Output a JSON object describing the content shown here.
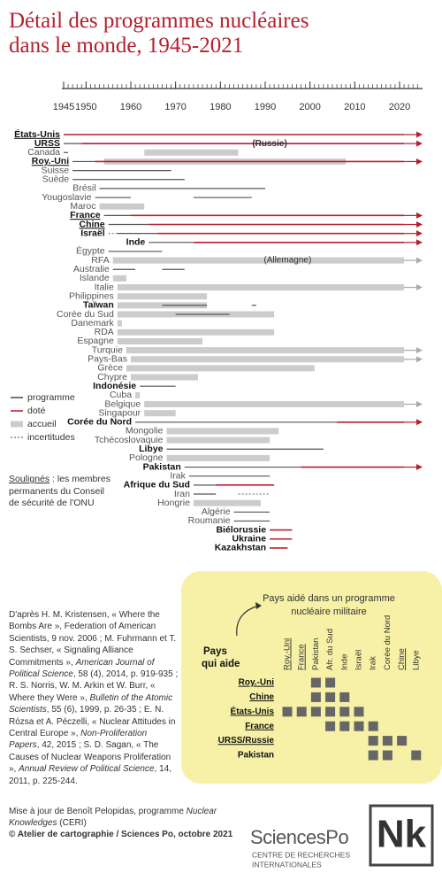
{
  "chart_data": {
    "type": "timeline",
    "title": "Détail des programmes nucléaires dans le monde, 1945-2021",
    "xlim": [
      1945,
      2020
    ],
    "xticks": [
      1945,
      1950,
      1960,
      1970,
      1980,
      1990,
      2000,
      2010,
      2020
    ],
    "kinds": {
      "p": "#555555",
      "d": "#b5202e",
      "a": "#cccccc",
      "i": "#888888"
    },
    "rows": [
      {
        "name": "États-Unis",
        "bold": true,
        "underline": true,
        "segments": [
          {
            "k": "d",
            "from": 1945,
            "to": 2021,
            "arrow": true
          }
        ]
      },
      {
        "name": "URSS",
        "bold": true,
        "underline": true,
        "segments": [
          {
            "k": "p",
            "from": 1945,
            "to": 1949
          },
          {
            "k": "d",
            "from": 1949,
            "to": 2021,
            "arrow": true
          }
        ],
        "note": "(Russie)",
        "note_at": 1991
      },
      {
        "name": "Canada",
        "segments": [
          {
            "k": "p",
            "from": 1945,
            "to": 1946
          },
          {
            "k": "a",
            "from": 1963,
            "to": 1984
          }
        ]
      },
      {
        "name": "Roy.-Uni",
        "bold": true,
        "underline": true,
        "segments": [
          {
            "k": "p",
            "from": 1947,
            "to": 1952
          },
          {
            "k": "a",
            "from": 1954,
            "to": 2008
          },
          {
            "k": "d",
            "from": 1952,
            "to": 2021,
            "arrow": true
          }
        ]
      },
      {
        "name": "Suisse",
        "segments": [
          {
            "k": "p",
            "from": 1947,
            "to": 1969
          }
        ]
      },
      {
        "name": "Suède",
        "segments": [
          {
            "k": "p",
            "from": 1947,
            "to": 1972
          }
        ]
      },
      {
        "name": "Brésil",
        "segments": [
          {
            "k": "p",
            "from": 1953,
            "to": 1990
          }
        ]
      },
      {
        "name": "Yougoslavie",
        "segments": [
          {
            "k": "p",
            "from": 1952,
            "to": 1960
          },
          {
            "k": "p",
            "from": 1974,
            "to": 1987
          }
        ]
      },
      {
        "name": "Maroc",
        "segments": [
          {
            "k": "a",
            "from": 1953,
            "to": 1963
          }
        ]
      },
      {
        "name": "France",
        "bold": true,
        "underline": true,
        "segments": [
          {
            "k": "p",
            "from": 1954,
            "to": 1960
          },
          {
            "k": "d",
            "from": 1960,
            "to": 2021,
            "arrow": true
          }
        ]
      },
      {
        "name": "Chine",
        "bold": true,
        "underline": true,
        "segments": [
          {
            "k": "p",
            "from": 1955,
            "to": 1964
          },
          {
            "k": "d",
            "from": 1964,
            "to": 2021,
            "arrow": true
          }
        ]
      },
      {
        "name": "Israël",
        "bold": true,
        "segments": [
          {
            "k": "i",
            "from": 1955,
            "to": 1957
          },
          {
            "k": "p",
            "from": 1957,
            "to": 1966
          },
          {
            "k": "d",
            "from": 1966,
            "to": 2021,
            "arrow": true
          }
        ]
      },
      {
        "name": "Inde",
        "bold": true,
        "segments": [
          {
            "k": "p",
            "from": 1964,
            "to": 1974
          },
          {
            "k": "d",
            "from": 1974,
            "to": 2021,
            "arrow": true
          }
        ]
      },
      {
        "name": "Égypte",
        "segments": [
          {
            "k": "p",
            "from": 1955,
            "to": 1967
          }
        ]
      },
      {
        "name": "RFA",
        "segments": [
          {
            "k": "a",
            "from": 1956,
            "to": 2021,
            "arrow": true
          }
        ],
        "note": "(Allemagne)",
        "note_at": 1995
      },
      {
        "name": "Australie",
        "segments": [
          {
            "k": "p",
            "from": 1956,
            "to": 1961
          },
          {
            "k": "p",
            "from": 1967,
            "to": 1972
          }
        ]
      },
      {
        "name": "Islande",
        "segments": [
          {
            "k": "a",
            "from": 1956,
            "to": 1959
          }
        ]
      },
      {
        "name": "Italie",
        "segments": [
          {
            "k": "a",
            "from": 1957,
            "to": 2021,
            "arrow": true
          }
        ]
      },
      {
        "name": "Philippines",
        "segments": [
          {
            "k": "a",
            "from": 1957,
            "to": 1977
          }
        ]
      },
      {
        "name": "Taïwan",
        "bold": true,
        "segments": [
          {
            "k": "a",
            "from": 1957,
            "to": 1977
          },
          {
            "k": "p",
            "from": 1967,
            "to": 1977
          },
          {
            "k": "p",
            "from": 1987,
            "to": 1988
          }
        ]
      },
      {
        "name": "Corée du Sud",
        "segments": [
          {
            "k": "a",
            "from": 1957,
            "to": 1992
          },
          {
            "k": "p",
            "from": 1970,
            "to": 1982
          }
        ]
      },
      {
        "name": "Danemark",
        "segments": [
          {
            "k": "a",
            "from": 1957,
            "to": 1958
          }
        ]
      },
      {
        "name": "RDA",
        "segments": [
          {
            "k": "a",
            "from": 1957,
            "to": 1992
          }
        ]
      },
      {
        "name": "Espagne",
        "segments": [
          {
            "k": "a",
            "from": 1957,
            "to": 1976
          }
        ]
      },
      {
        "name": "Turquie",
        "segments": [
          {
            "k": "a",
            "from": 1959,
            "to": 2021,
            "arrow": true
          }
        ]
      },
      {
        "name": "Pays-Bas",
        "segments": [
          {
            "k": "a",
            "from": 1960,
            "to": 2021,
            "arrow": true
          }
        ]
      },
      {
        "name": "Grèce",
        "segments": [
          {
            "k": "a",
            "from": 1959,
            "to": 2001
          }
        ]
      },
      {
        "name": "Chypre",
        "segments": [
          {
            "k": "a",
            "from": 1960,
            "to": 1975
          }
        ]
      },
      {
        "name": "Indonésie",
        "bold": true,
        "segments": [
          {
            "k": "p",
            "from": 1962,
            "to": 1970
          }
        ]
      },
      {
        "name": "Cuba",
        "segments": [
          {
            "k": "a",
            "from": 1961,
            "to": 1962
          }
        ]
      },
      {
        "name": "Belgique",
        "segments": [
          {
            "k": "a",
            "from": 1963,
            "to": 2021,
            "arrow": true
          }
        ]
      },
      {
        "name": "Singapour",
        "segments": [
          {
            "k": "a",
            "from": 1963,
            "to": 1970
          }
        ]
      },
      {
        "name": "Corée du Nord",
        "bold": true,
        "segments": [
          {
            "k": "p",
            "from": 1961,
            "to": 2006
          },
          {
            "k": "d",
            "from": 2006,
            "to": 2021,
            "arrow": true
          }
        ]
      },
      {
        "name": "Mongolie",
        "segments": [
          {
            "k": "a",
            "from": 1968,
            "to": 1993
          }
        ]
      },
      {
        "name": "Tchécoslovaquie",
        "segments": [
          {
            "k": "a",
            "from": 1968,
            "to": 1991
          }
        ]
      },
      {
        "name": "Libye",
        "bold": true,
        "segments": [
          {
            "k": "p",
            "from": 1968,
            "to": 2003
          }
        ]
      },
      {
        "name": "Pologne",
        "segments": [
          {
            "k": "a",
            "from": 1968,
            "to": 1991
          }
        ]
      },
      {
        "name": "Pakistan",
        "bold": true,
        "segments": [
          {
            "k": "p",
            "from": 1972,
            "to": 1998
          },
          {
            "k": "d",
            "from": 1998,
            "to": 2021,
            "arrow": true
          }
        ]
      },
      {
        "name": "Irak",
        "segments": [
          {
            "k": "p",
            "from": 1973,
            "to": 1991
          }
        ]
      },
      {
        "name": "Afrique du Sud",
        "bold": true,
        "segments": [
          {
            "k": "p",
            "from": 1974,
            "to": 1979
          },
          {
            "k": "d",
            "from": 1979,
            "to": 1992
          }
        ]
      },
      {
        "name": "Iran",
        "segments": [
          {
            "k": "p",
            "from": 1974,
            "to": 1979
          },
          {
            "k": "i",
            "from": 1984,
            "to": 1991
          }
        ]
      },
      {
        "name": "Hongrie",
        "segments": [
          {
            "k": "a",
            "from": 1974,
            "to": 1989
          }
        ]
      },
      {
        "name": "Algérie",
        "segments": [
          {
            "k": "p",
            "from": 1983,
            "to": 1991
          }
        ]
      },
      {
        "name": "Roumanie",
        "segments": [
          {
            "k": "p",
            "from": 1983,
            "to": 1991
          }
        ]
      },
      {
        "name": "Biélorussie",
        "bold": true,
        "segments": [
          {
            "k": "d",
            "from": 1991,
            "to": 1996
          }
        ]
      },
      {
        "name": "Ukraine",
        "bold": true,
        "segments": [
          {
            "k": "d",
            "from": 1991,
            "to": 1996
          }
        ]
      },
      {
        "name": "Kazakhstan",
        "bold": true,
        "segments": [
          {
            "k": "d",
            "from": 1991,
            "to": 1995
          }
        ]
      }
    ],
    "legend": [
      {
        "k": "p",
        "label": "programme"
      },
      {
        "k": "d",
        "label": "doté"
      },
      {
        "k": "a",
        "label": "accueil"
      },
      {
        "k": "i",
        "label": "incertitudes"
      }
    ]
  },
  "note": {
    "underlined": "Soulignés",
    "text": " : les membres permanents du Conseil de sécurité de l'ONU"
  },
  "source": [
    {
      "t": "D'après H. M. Kristensen, « Where the Bombs Are », Federation of American Scientists, 9 nov. 2006 ; M. Fuhrmann et T. S. Sechser, « Signaling Alliance Commitments », "
    },
    {
      "t": "American Journal of Political Science",
      "i": true
    },
    {
      "t": ", 58 (4), 2014, p. 919-935 ; R. S. Norris, W. M. Arkin et W. Burr, « Where they Were », "
    },
    {
      "t": "Bulletin of the Atomic Scientists",
      "i": true
    },
    {
      "t": ", 55 (6), 1999, p. 26-35 ; E. N. Rózsa et A. Péczelli, « Nuclear Attitudes in Central Europe », "
    },
    {
      "t": "Non-Proliferation Papers",
      "i": true
    },
    {
      "t": ", 42, 2015 ; S. D. Sagan, « The Causes of Nuclear Weapons Proliferation », "
    },
    {
      "t": "Annual Review of Political Science",
      "i": true
    },
    {
      "t": ", 14, 2011, p. 225-244."
    }
  ],
  "matrix": {
    "header": [
      "Pays aidé dans un programme",
      "nucléaire militaire"
    ],
    "helper_title": [
      "Pays",
      "qui aide"
    ],
    "columns": [
      {
        "name": "Roy.-Uni",
        "underline": true
      },
      {
        "name": "France",
        "underline": true
      },
      {
        "name": "Pakistan"
      },
      {
        "name": "Afr. du Sud"
      },
      {
        "name": "Inde"
      },
      {
        "name": "Israël"
      },
      {
        "name": "Irak"
      },
      {
        "name": "Corée du Nord"
      },
      {
        "name": "Chine",
        "underline": true
      },
      {
        "name": "Libye"
      }
    ],
    "rows": [
      {
        "name": "Roy.-Uni",
        "underline": true,
        "cols": [
          2,
          3
        ]
      },
      {
        "name": "Chine",
        "underline": true,
        "cols": [
          2,
          3,
          4
        ]
      },
      {
        "name": "États-Unis",
        "underline": true,
        "cols": [
          0,
          1,
          2,
          3,
          4,
          5
        ]
      },
      {
        "name": "France",
        "underline": true,
        "cols": [
          3,
          4,
          5,
          6
        ]
      },
      {
        "name": "URSS/Russie",
        "underline": true,
        "cols": [
          6,
          7,
          8
        ]
      },
      {
        "name": "Pakistan",
        "cols": [
          6,
          7,
          9
        ]
      }
    ]
  },
  "footer": [
    {
      "t": "Mise à jour de Benoît Pelopidas, programme "
    },
    {
      "t": "Nuclear Knowledges",
      "i": true
    },
    {
      "t": " (CERI)"
    },
    {
      "t": "© Atelier de cartographie / Sciences Po, octobre 2021",
      "b": true,
      "br": true
    }
  ],
  "logo": {
    "name": "SciencesPo",
    "lines": [
      "CENTRE DE RECHERCHES",
      "INTERNATIONALES"
    ],
    "mark": "Nk"
  }
}
